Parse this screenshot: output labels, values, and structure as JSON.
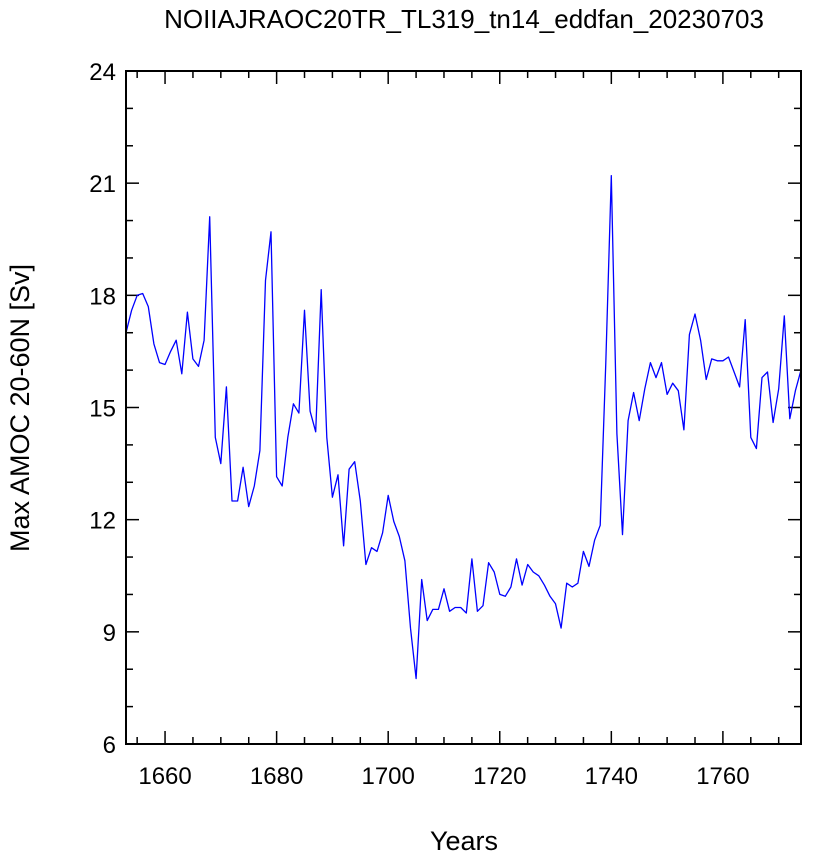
{
  "chart_data": {
    "type": "line",
    "title": "NOIIAJRAOC20TR_TL319_tn14_eddfan_20230703",
    "xlabel": "Years",
    "ylabel": "Max AMOC 20-60N [Sv]",
    "xlim": [
      1653,
      1774
    ],
    "ylim": [
      6,
      24
    ],
    "xticks": [
      1660,
      1680,
      1700,
      1720,
      1740,
      1760
    ],
    "yticks": [
      6,
      9,
      12,
      15,
      18,
      21,
      24
    ],
    "grid": false,
    "line_color": "#0000ff",
    "series": [
      {
        "x": [
          1653,
          1654,
          1655,
          1656,
          1657,
          1658,
          1659,
          1660,
          1661,
          1662,
          1663,
          1664,
          1665,
          1666,
          1667,
          1668,
          1669,
          1670,
          1671,
          1672,
          1673,
          1674,
          1675,
          1676,
          1677,
          1678,
          1679,
          1680,
          1681,
          1682,
          1683,
          1684,
          1685,
          1686,
          1687,
          1688,
          1689,
          1690,
          1691,
          1692,
          1693,
          1694,
          1695,
          1696,
          1697,
          1698,
          1699,
          1700,
          1701,
          1702,
          1703,
          1704,
          1705,
          1706,
          1707,
          1708,
          1709,
          1710,
          1711,
          1712,
          1713,
          1714,
          1715,
          1716,
          1717,
          1718,
          1719,
          1720,
          1721,
          1722,
          1723,
          1724,
          1725,
          1726,
          1727,
          1728,
          1729,
          1730,
          1731,
          1732,
          1733,
          1734,
          1735,
          1736,
          1737,
          1738,
          1739,
          1740,
          1741,
          1742,
          1743,
          1744,
          1745,
          1746,
          1747,
          1748,
          1749,
          1750,
          1751,
          1752,
          1753,
          1754,
          1755,
          1756,
          1757,
          1758,
          1759,
          1760,
          1761,
          1762,
          1763,
          1764,
          1765,
          1766,
          1767,
          1768,
          1769,
          1770,
          1771,
          1772,
          1773,
          1774
        ],
        "values": [
          17.0,
          17.6,
          18.0,
          18.05,
          17.7,
          16.7,
          16.2,
          16.15,
          16.5,
          16.8,
          15.9,
          17.55,
          16.3,
          16.1,
          16.8,
          20.1,
          14.2,
          13.5,
          15.55,
          12.5,
          12.5,
          13.4,
          12.35,
          12.9,
          13.85,
          18.4,
          19.7,
          13.15,
          12.9,
          14.2,
          15.1,
          14.85,
          17.6,
          14.9,
          14.35,
          18.15,
          14.2,
          12.6,
          13.2,
          11.3,
          13.35,
          13.55,
          12.5,
          10.8,
          11.25,
          11.15,
          11.65,
          12.65,
          11.95,
          11.55,
          10.9,
          9.1,
          7.75,
          10.4,
          9.3,
          9.6,
          9.6,
          10.15,
          9.55,
          9.65,
          9.65,
          9.5,
          10.95,
          9.55,
          9.7,
          10.85,
          10.6,
          10.0,
          9.95,
          10.2,
          10.95,
          10.25,
          10.8,
          10.6,
          10.5,
          10.25,
          9.95,
          9.75,
          9.1,
          10.3,
          10.2,
          10.3,
          11.15,
          10.75,
          11.45,
          11.85,
          16.2,
          21.2,
          14.3,
          11.6,
          14.65,
          15.4,
          14.65,
          15.5,
          16.2,
          15.8,
          16.2,
          15.35,
          15.65,
          15.45,
          14.4,
          16.95,
          17.5,
          16.8,
          15.75,
          16.3,
          16.25,
          16.25,
          16.35,
          15.95,
          15.55,
          17.35,
          14.2,
          13.9,
          15.8,
          15.95,
          14.6,
          15.5,
          17.45,
          14.7,
          15.45,
          16.0
        ]
      }
    ]
  }
}
